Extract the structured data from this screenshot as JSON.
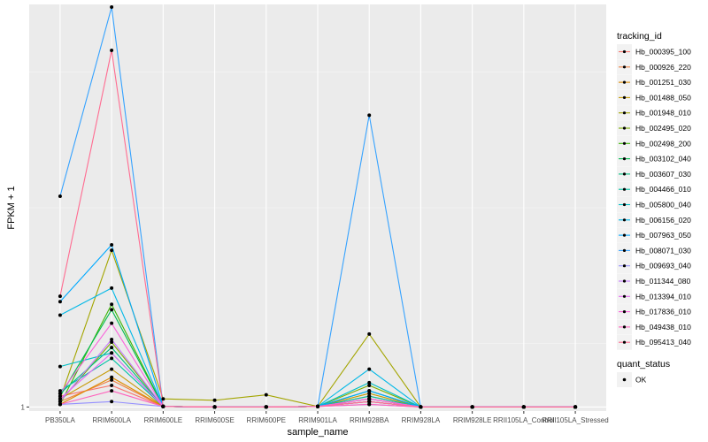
{
  "chart_data": {
    "type": "line",
    "xlabel": "sample_name",
    "ylabel": "FPKM + 1",
    "categories": [
      "PB350LA",
      "RRIM600LA",
      "RRIM600LE",
      "RRIM600SE",
      "RRIM600PE",
      "RRIM901LA",
      "RRIM928BA",
      "RRIM928LA",
      "RRIM928LE",
      "RRII105LA_Control",
      "RRII105LA_Stressed"
    ],
    "y_ticks": [
      1
    ],
    "ylim": [
      0.85,
      15.9
    ],
    "grid": true,
    "legend_title": "tracking_id",
    "legend_position": "right",
    "series": [
      {
        "name": "Hb_000395_100",
        "color": "#F8766D",
        "values": [
          1.4,
          1.8,
          1.02,
          1,
          1,
          1.02,
          1.3,
          1,
          1,
          1,
          1
        ]
      },
      {
        "name": "Hb_000926_220",
        "color": "#EE8043",
        "values": [
          1.2,
          2.0,
          1.02,
          1,
          1,
          1.02,
          1.4,
          1,
          1,
          1,
          1
        ]
      },
      {
        "name": "Hb_001251_030",
        "color": "#DE8C00",
        "values": [
          1.1,
          2.1,
          1.02,
          1,
          1,
          1.02,
          1.2,
          1,
          1,
          1,
          1
        ]
      },
      {
        "name": "Hb_001488_050",
        "color": "#C59900",
        "values": [
          1.3,
          2.4,
          1.02,
          1,
          1,
          1.02,
          1.5,
          1,
          1,
          1,
          1
        ]
      },
      {
        "name": "Hb_001948_010",
        "color": "#A3A500",
        "values": [
          1.3,
          6.8,
          1.3,
          1.25,
          1.45,
          1.02,
          3.7,
          1,
          1,
          1,
          1
        ]
      },
      {
        "name": "Hb_002495_020",
        "color": "#7CAE00",
        "values": [
          1.2,
          3.4,
          1.02,
          1,
          1,
          1.02,
          1.8,
          1,
          1,
          1,
          1
        ]
      },
      {
        "name": "Hb_002498_200",
        "color": "#39B600",
        "values": [
          1.1,
          4.8,
          1.02,
          1,
          1,
          1.02,
          1.3,
          1,
          1,
          1,
          1
        ]
      },
      {
        "name": "Hb_003102_040",
        "color": "#00BB4E",
        "values": [
          1.4,
          4.6,
          1.02,
          1,
          1,
          1.02,
          1.6,
          1,
          1,
          1,
          1
        ]
      },
      {
        "name": "Hb_003607_030",
        "color": "#00BF7D",
        "values": [
          1.5,
          3.2,
          1.02,
          1,
          1,
          1.02,
          1.2,
          1,
          1,
          1,
          1
        ]
      },
      {
        "name": "Hb_004466_010",
        "color": "#00C1A3",
        "values": [
          1.6,
          2.8,
          1.02,
          1,
          1,
          1.02,
          1.4,
          1,
          1,
          1,
          1
        ]
      },
      {
        "name": "Hb_005800_040",
        "color": "#00BFC4",
        "values": [
          2.5,
          3.0,
          1.02,
          1,
          1,
          1.02,
          1.9,
          1,
          1,
          1,
          1
        ]
      },
      {
        "name": "Hb_006156_020",
        "color": "#00B8E7",
        "values": [
          4.4,
          5.4,
          1.02,
          1,
          1,
          1.02,
          2.4,
          1,
          1,
          1,
          1
        ]
      },
      {
        "name": "Hb_007963_050",
        "color": "#00A9FF",
        "values": [
          4.9,
          7.0,
          1.02,
          1,
          1,
          1.02,
          1.6,
          1,
          1,
          1,
          1
        ]
      },
      {
        "name": "Hb_008071_030",
        "color": "#35A2FF",
        "values": [
          8.8,
          15.8,
          1.02,
          1,
          1,
          1.02,
          11.8,
          1,
          1,
          1,
          1
        ]
      },
      {
        "name": "Hb_009693_040",
        "color": "#9590FF",
        "values": [
          1.1,
          1.2,
          1.02,
          1,
          1,
          1.02,
          1.1,
          1,
          1,
          1,
          1
        ]
      },
      {
        "name": "Hb_011344_080",
        "color": "#C77CFF",
        "values": [
          1.2,
          3.5,
          1.02,
          1,
          1,
          1.02,
          1.3,
          1,
          1,
          1,
          1
        ]
      },
      {
        "name": "Hb_013394_010",
        "color": "#E76BF3",
        "values": [
          1.3,
          3.0,
          1.02,
          1,
          1,
          1.02,
          1.2,
          1,
          1,
          1,
          1
        ]
      },
      {
        "name": "Hb_017836_010",
        "color": "#FA62DB",
        "values": [
          1.5,
          4.1,
          1.02,
          1,
          1,
          1.02,
          1.3,
          1,
          1,
          1,
          1
        ]
      },
      {
        "name": "Hb_049438_010",
        "color": "#FF62BC",
        "values": [
          1.1,
          1.6,
          1.02,
          1,
          1,
          1.02,
          1.1,
          1,
          1,
          1,
          1
        ]
      },
      {
        "name": "Hb_095413_040",
        "color": "#FF6C91",
        "values": [
          5.1,
          14.2,
          1.02,
          1,
          1,
          1.02,
          1.2,
          1,
          1,
          1,
          1
        ]
      }
    ],
    "shape_legend": {
      "title": "quant_status",
      "items": [
        "OK"
      ]
    }
  }
}
